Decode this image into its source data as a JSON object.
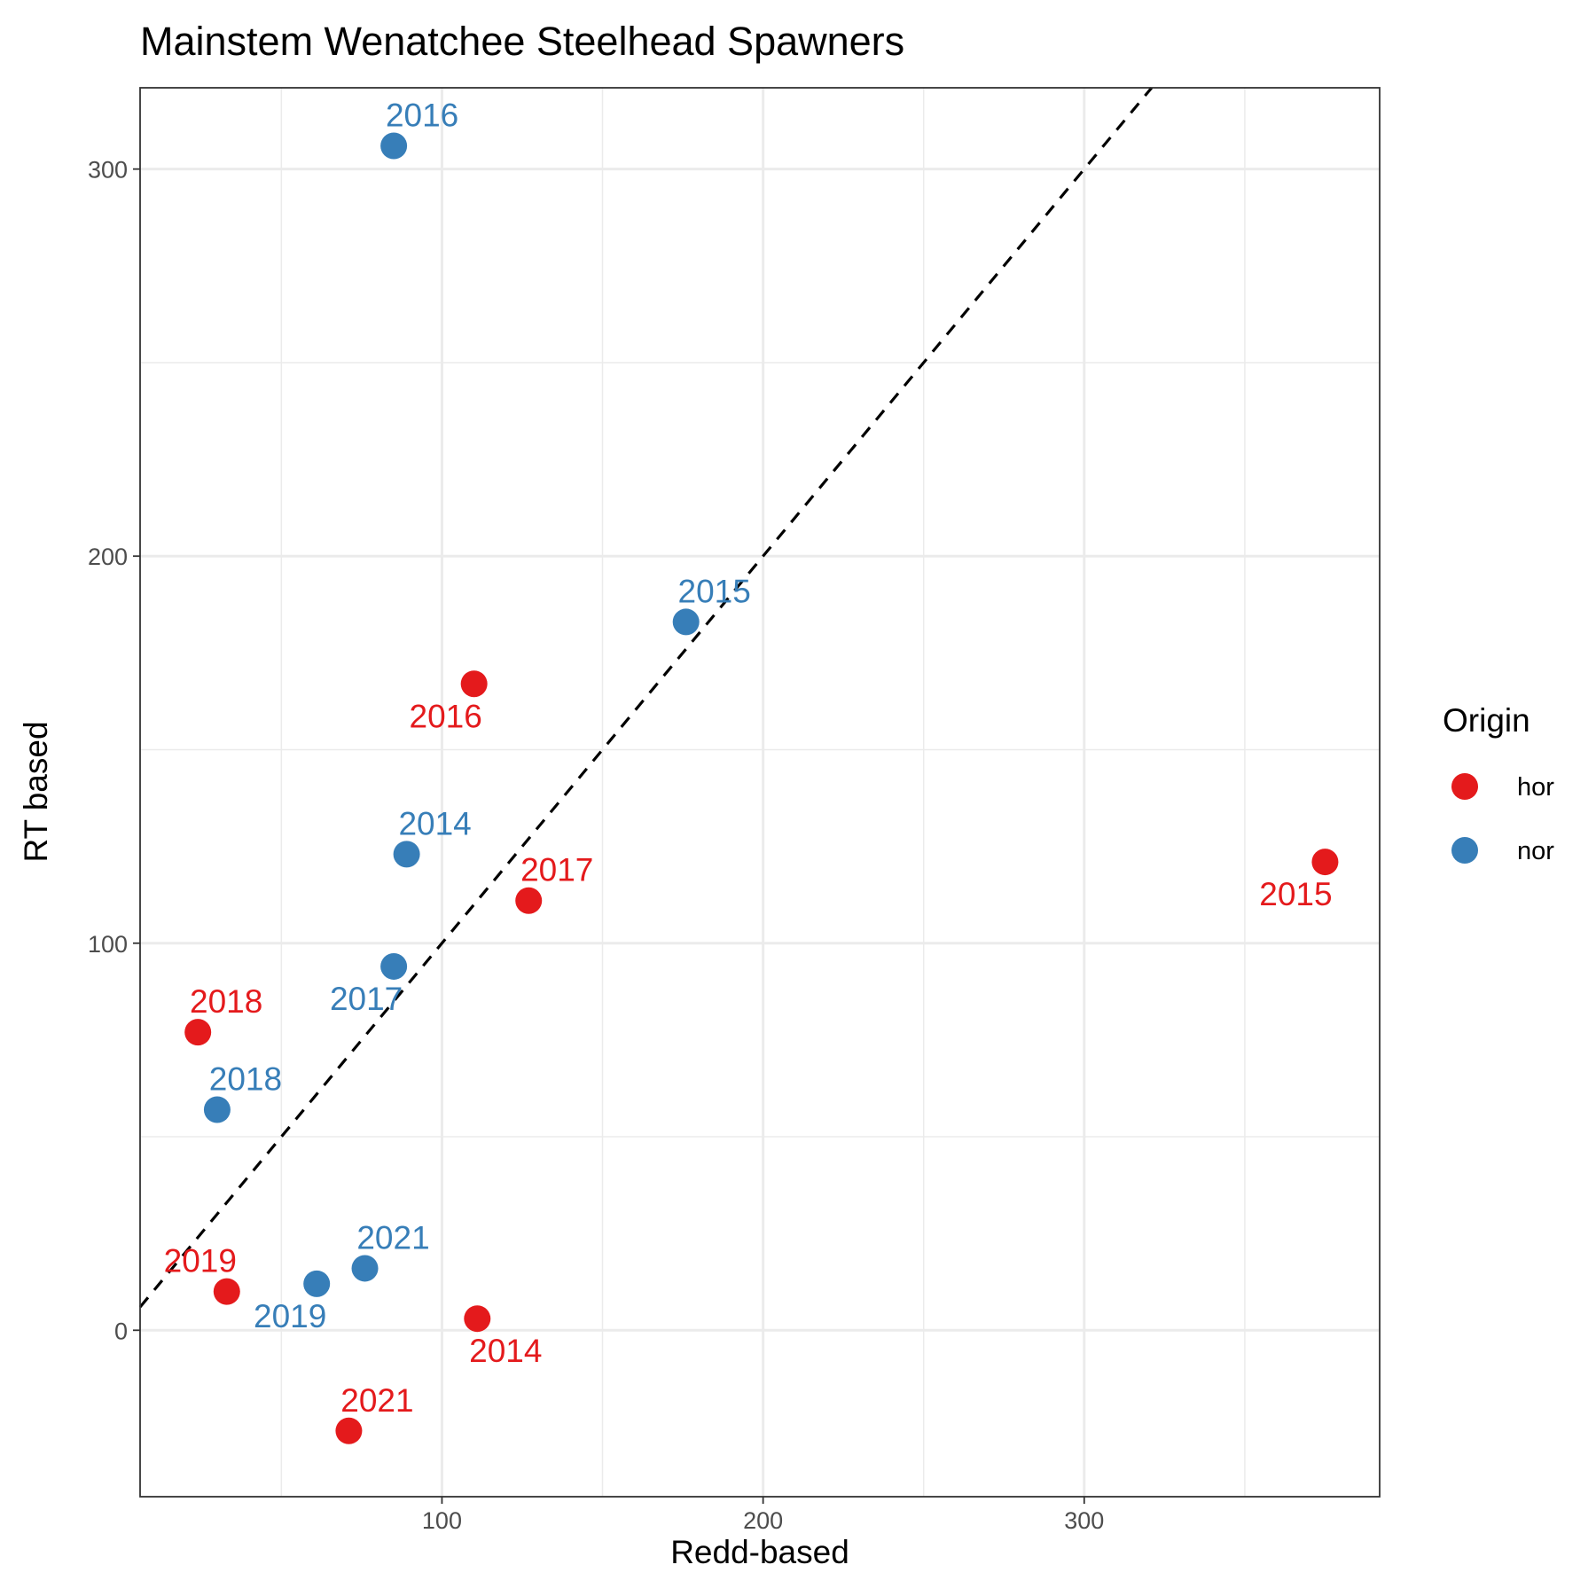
{
  "chart_data": {
    "type": "scatter",
    "title": "Mainstem Wenatchee Steelhead Spawners",
    "xlabel": "Redd-based",
    "ylabel": "RT based",
    "xlim": [
      6,
      392
    ],
    "ylim": [
      -43,
      321
    ],
    "x_ticks": [
      100,
      200,
      300
    ],
    "y_ticks": [
      0,
      100,
      200,
      300
    ],
    "grid": true,
    "reference_line": {
      "type": "identity",
      "style": "dashed",
      "color": "#000000"
    },
    "legend": {
      "title": "Origin",
      "position": "right"
    },
    "series": [
      {
        "name": "hor",
        "color": "#E41A1C",
        "points": [
          {
            "label": "2014",
            "x": 111,
            "y": 3
          },
          {
            "label": "2015",
            "x": 375,
            "y": 121
          },
          {
            "label": "2016",
            "x": 110,
            "y": 167
          },
          {
            "label": "2017",
            "x": 127,
            "y": 111
          },
          {
            "label": "2018",
            "x": 24,
            "y": 77
          },
          {
            "label": "2019",
            "x": 33,
            "y": 10
          },
          {
            "label": "2021",
            "x": 71,
            "y": -26
          }
        ]
      },
      {
        "name": "nor",
        "color": "#377EB8",
        "points": [
          {
            "label": "2014",
            "x": 89,
            "y": 123
          },
          {
            "label": "2015",
            "x": 176,
            "y": 183
          },
          {
            "label": "2016",
            "x": 85,
            "y": 306
          },
          {
            "label": "2017",
            "x": 85,
            "y": 94
          },
          {
            "label": "2018",
            "x": 30,
            "y": 57
          },
          {
            "label": "2019",
            "x": 61,
            "y": 12
          },
          {
            "label": "2021",
            "x": 76,
            "y": 16
          }
        ]
      }
    ]
  }
}
